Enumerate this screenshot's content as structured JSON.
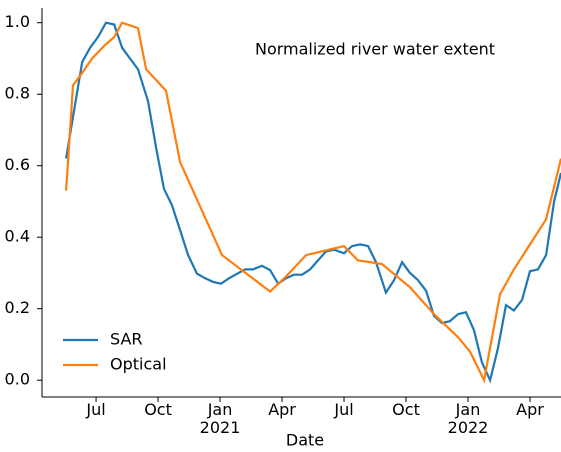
{
  "chart_data": {
    "type": "line",
    "annotation": "Normalized river water extent",
    "x_label": "Date",
    "xlim": [
      2020.282,
      2022.375
    ],
    "ylim": [
      -0.047,
      1.03
    ],
    "xticks": [
      {
        "value": 2020.5,
        "label": "Jul"
      },
      {
        "value": 2020.75,
        "label": "Oct"
      },
      {
        "value": 2021.0,
        "label": "Jan\n2021"
      },
      {
        "value": 2021.25,
        "label": "Apr"
      },
      {
        "value": 2021.5,
        "label": "Jul"
      },
      {
        "value": 2021.75,
        "label": "Oct"
      },
      {
        "value": 2022.0,
        "label": "Jan\n2022"
      },
      {
        "value": 2022.25,
        "label": "Apr"
      }
    ],
    "yticks": [
      {
        "value": 0,
        "label": "0.0"
      },
      0.2,
      0.4,
      0.6,
      0.8,
      {
        "value": 1,
        "label": "1.0"
      }
    ],
    "legend": "lower left",
    "series": [
      {
        "name": "SAR",
        "color": "#1f77b4",
        "x": [
          2020.379,
          2020.403,
          2020.444,
          2020.476,
          2020.508,
          2020.54,
          2020.573,
          2020.605,
          2020.637,
          2020.669,
          2020.71,
          2020.742,
          2020.774,
          2020.806,
          2020.839,
          2020.871,
          2020.907,
          2020.94,
          2020.972,
          2021.004,
          2021.036,
          2021.069,
          2021.101,
          2021.133,
          2021.169,
          2021.202,
          2021.234,
          2021.266,
          2021.298,
          2021.331,
          2021.363,
          2021.395,
          2021.427,
          2021.46,
          2021.5,
          2021.532,
          2021.565,
          2021.597,
          2021.629,
          2021.669,
          2021.702,
          2021.734,
          2021.766,
          2021.798,
          2021.831,
          2021.863,
          2021.895,
          2021.927,
          2021.96,
          2021.992,
          2022.024,
          2022.056,
          2022.089,
          2022.121,
          2022.153,
          2022.185,
          2022.218,
          2022.25,
          2022.282,
          2022.315,
          2022.347,
          2022.375
        ],
        "values": [
          0.62,
          0.72,
          0.89,
          0.93,
          0.96,
          1.0,
          0.995,
          0.93,
          0.9,
          0.87,
          0.78,
          0.65,
          0.535,
          0.49,
          0.42,
          0.35,
          0.298,
          0.285,
          0.275,
          0.27,
          0.285,
          0.298,
          0.31,
          0.31,
          0.32,
          0.308,
          0.27,
          0.285,
          0.295,
          0.295,
          0.31,
          0.335,
          0.36,
          0.365,
          0.355,
          0.375,
          0.38,
          0.375,
          0.33,
          0.245,
          0.28,
          0.33,
          0.3,
          0.28,
          0.25,
          0.18,
          0.16,
          0.165,
          0.185,
          0.19,
          0.14,
          0.05,
          0.0,
          0.09,
          0.21,
          0.195,
          0.225,
          0.305,
          0.31,
          0.35,
          0.5,
          0.58
        ]
      },
      {
        "name": "Optical",
        "color": "#ff7f0e",
        "x": [
          2020.379,
          2020.407,
          2020.444,
          2020.484,
          2020.532,
          2020.573,
          2020.605,
          2020.669,
          2020.702,
          2020.782,
          2020.839,
          2021.008,
          2021.202,
          2021.266,
          2021.347,
          2021.5,
          2021.556,
          2021.653,
          2021.766,
          2021.863,
          2021.96,
          2022.008,
          2022.065,
          2022.129,
          2022.185,
          2022.25,
          2022.315,
          2022.375
        ],
        "values": [
          0.53,
          0.825,
          0.86,
          0.9,
          0.935,
          0.96,
          1.0,
          0.985,
          0.87,
          0.81,
          0.61,
          0.35,
          0.248,
          0.29,
          0.35,
          0.375,
          0.335,
          0.325,
          0.26,
          0.185,
          0.12,
          0.08,
          0.0,
          0.24,
          0.31,
          0.38,
          0.45,
          0.62
        ]
      }
    ]
  }
}
